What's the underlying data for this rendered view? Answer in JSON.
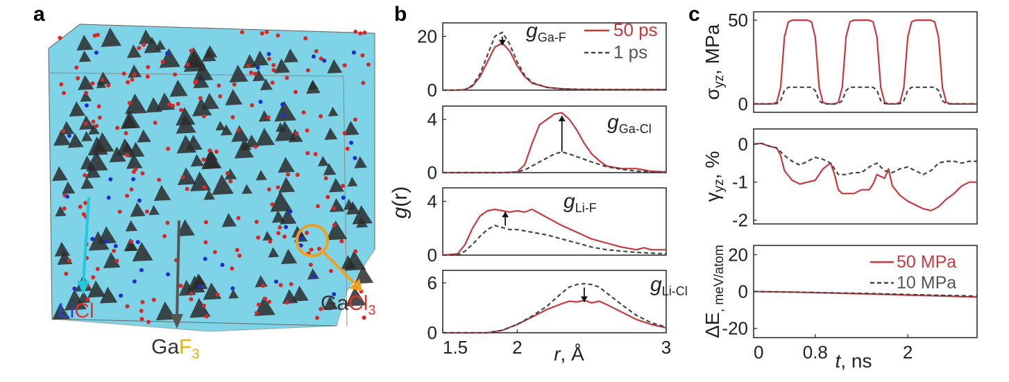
{
  "panels": {
    "a": {
      "label": "a",
      "labels": {
        "licl": {
          "parts": [
            {
              "text": "Li",
              "color": "#2a3fd6"
            },
            {
              "text": "Cl",
              "color": "#e0342b"
            }
          ]
        },
        "gaf3": {
          "parts": [
            {
              "text": "Ga",
              "color": "#333333"
            },
            {
              "text": "F",
              "color": "#e4b400"
            },
            {
              "text": "3",
              "color": "#e4b400",
              "sub": true
            }
          ]
        },
        "gacl3": {
          "parts": [
            {
              "text": "Ga",
              "color": "#333333"
            },
            {
              "text": "Cl",
              "color": "#e0342b"
            },
            {
              "text": "3",
              "color": "#e0342b",
              "sub": true
            }
          ]
        }
      },
      "colors": {
        "licl_arrow": "#1fc8e0",
        "gaf3_arrow": "#555555",
        "gacl3_arrow": "#f0a020",
        "cluster": "#7fd3e6",
        "tetra": "#2c2c2c",
        "atom_red": "#d62828",
        "atom_blue": "#1b2fd1"
      }
    },
    "b": {
      "label": "b"
    },
    "c": {
      "label": "c"
    }
  },
  "chart_data": [
    {
      "id": "b1",
      "type": "line",
      "panel": "b",
      "label_main": "g",
      "label_sub": "Ga-F",
      "ylim": [
        0,
        25
      ],
      "yticks": [
        0,
        20
      ],
      "xlim": [
        1.5,
        3.0
      ],
      "legend": [
        {
          "name": "50 ps",
          "style": "solid",
          "color": "#c8383c"
        },
        {
          "name": "1 ps",
          "style": "dashed",
          "color": "#444444"
        }
      ],
      "arrow": {
        "direction": "down",
        "x": 1.9
      },
      "series": [
        {
          "name": "50 ps",
          "color": "#c8383c",
          "style": "solid",
          "x": [
            1.5,
            1.6,
            1.65,
            1.7,
            1.75,
            1.8,
            1.85,
            1.9,
            1.95,
            2.0,
            2.05,
            2.1,
            2.2,
            2.3,
            2.4,
            2.6,
            2.8,
            3.0
          ],
          "y": [
            0,
            0,
            0.2,
            1.5,
            5,
            10.5,
            16,
            17.5,
            14.5,
            9,
            5,
            2.6,
            1,
            0.5,
            0.3,
            0.2,
            0.2,
            0.2
          ]
        },
        {
          "name": "1 ps",
          "color": "#444444",
          "style": "dashed",
          "x": [
            1.5,
            1.6,
            1.65,
            1.7,
            1.75,
            1.8,
            1.85,
            1.9,
            1.95,
            2.0,
            2.05,
            2.1,
            2.2,
            2.3,
            2.4,
            2.6,
            2.8,
            3.0
          ],
          "y": [
            0,
            0,
            0.2,
            1.8,
            6,
            13,
            20,
            21.5,
            17,
            10.5,
            5.5,
            2.8,
            1,
            0.5,
            0.3,
            0.2,
            0.2,
            0.2
          ]
        }
      ]
    },
    {
      "id": "b2",
      "type": "line",
      "panel": "b",
      "label_main": "g",
      "label_sub": "Ga-Cl",
      "ylim": [
        0,
        5
      ],
      "yticks": [
        0,
        4
      ],
      "xlim": [
        1.5,
        3.0
      ],
      "arrow": {
        "direction": "up",
        "x": 2.3
      },
      "series": [
        {
          "name": "50 ps",
          "color": "#c8383c",
          "style": "solid",
          "x": [
            1.5,
            1.9,
            2.0,
            2.05,
            2.1,
            2.15,
            2.2,
            2.25,
            2.3,
            2.35,
            2.4,
            2.45,
            2.5,
            2.55,
            2.6,
            2.7,
            2.8,
            2.9,
            3.0
          ],
          "y": [
            0,
            0,
            0.05,
            0.6,
            2.2,
            3.6,
            4.0,
            4.4,
            4.5,
            4.0,
            3.2,
            2.2,
            1.4,
            0.9,
            0.5,
            0.3,
            0.3,
            0.1,
            0.05
          ]
        },
        {
          "name": "1 ps",
          "color": "#444444",
          "style": "dashed",
          "x": [
            1.5,
            1.95,
            2.0,
            2.05,
            2.1,
            2.15,
            2.2,
            2.25,
            2.3,
            2.35,
            2.4,
            2.5,
            2.6,
            2.7,
            2.8,
            2.9,
            3.0
          ],
          "y": [
            0,
            0,
            0.05,
            0.2,
            0.5,
            0.8,
            1.1,
            1.4,
            1.55,
            1.4,
            1.2,
            0.8,
            0.45,
            0.25,
            0.12,
            0.06,
            0.05
          ]
        }
      ]
    },
    {
      "id": "b3",
      "type": "line",
      "panel": "b",
      "label_main": "g",
      "label_sub": "Li-F",
      "ylim": [
        0,
        5
      ],
      "yticks": [
        0,
        4
      ],
      "xlim": [
        1.5,
        3.0
      ],
      "arrow": {
        "direction": "up",
        "x": 1.92
      },
      "series": [
        {
          "name": "50 ps",
          "color": "#c8383c",
          "style": "solid",
          "x": [
            1.5,
            1.6,
            1.65,
            1.7,
            1.75,
            1.8,
            1.85,
            1.9,
            1.95,
            2.0,
            2.05,
            2.1,
            2.15,
            2.2,
            2.3,
            2.4,
            2.5,
            2.6,
            2.7,
            2.8,
            2.85,
            2.9,
            3.0
          ],
          "y": [
            0,
            0.1,
            0.8,
            2.0,
            2.9,
            3.3,
            3.4,
            3.3,
            3.2,
            3.3,
            3.2,
            3.4,
            3.1,
            2.8,
            2.2,
            1.7,
            1.2,
            0.9,
            0.6,
            0.4,
            0.55,
            0.4,
            0.4
          ]
        },
        {
          "name": "1 ps",
          "color": "#444444",
          "style": "dashed",
          "x": [
            1.5,
            1.6,
            1.65,
            1.7,
            1.75,
            1.8,
            1.85,
            1.9,
            1.95,
            2.0,
            2.1,
            2.2,
            2.3,
            2.4,
            2.5,
            2.6,
            2.7,
            2.8,
            2.9,
            3.0
          ],
          "y": [
            0,
            0,
            0.3,
            0.8,
            1.4,
            1.9,
            2.2,
            2.05,
            1.9,
            1.9,
            1.7,
            1.5,
            1.2,
            0.9,
            0.6,
            0.4,
            0.3,
            0.2,
            0.15,
            0.1
          ]
        }
      ]
    },
    {
      "id": "b4",
      "type": "line",
      "panel": "b",
      "label_main": "g",
      "label_sub": "Li-Cl",
      "ylim": [
        0,
        7.5
      ],
      "yticks": [
        0,
        6
      ],
      "xlim": [
        1.5,
        3.0
      ],
      "xticks": [
        1.5,
        2,
        3
      ],
      "xlabel_main": "r",
      "xlabel_rest": ", Å",
      "ylabel_main": "g",
      "ylabel_rest": "(r)",
      "arrow": {
        "direction": "down",
        "x": 2.45
      },
      "series": [
        {
          "name": "50 ps",
          "color": "#c8383c",
          "style": "solid",
          "x": [
            1.5,
            1.8,
            1.9,
            2.0,
            2.1,
            2.2,
            2.3,
            2.35,
            2.4,
            2.45,
            2.5,
            2.55,
            2.6,
            2.7,
            2.8,
            2.9,
            3.0
          ],
          "y": [
            0,
            0,
            0.3,
            1.0,
            1.9,
            2.8,
            3.5,
            3.8,
            3.7,
            3.9,
            3.6,
            3.8,
            3.4,
            2.5,
            1.6,
            1.0,
            0.6
          ]
        },
        {
          "name": "1 ps",
          "color": "#444444",
          "style": "dashed",
          "x": [
            1.5,
            1.8,
            1.9,
            2.0,
            2.1,
            2.2,
            2.3,
            2.35,
            2.4,
            2.45,
            2.5,
            2.55,
            2.6,
            2.7,
            2.8,
            2.9,
            3.0
          ],
          "y": [
            0,
            0,
            0.3,
            1.0,
            2.0,
            3.2,
            4.8,
            5.5,
            5.8,
            5.9,
            5.8,
            5.5,
            4.8,
            3.4,
            2.1,
            1.2,
            0.7
          ]
        }
      ]
    },
    {
      "id": "c1",
      "type": "line",
      "panel": "c",
      "ylabel_main": "σ",
      "ylabel_sub": "yz",
      "ylabel_rest": ", MPa",
      "ylim": [
        -5,
        55
      ],
      "yticks": [
        0,
        50
      ],
      "xlim": [
        0,
        2.9
      ],
      "series": [
        {
          "name": "50 MPa",
          "color": "#c8383c",
          "style": "solid",
          "x": [
            0,
            0.25,
            0.3,
            0.35,
            0.4,
            0.45,
            0.5,
            0.7,
            0.75,
            0.8,
            0.85,
            0.9,
            0.95,
            1.0,
            1.05,
            1.1,
            1.15,
            1.2,
            1.25,
            1.3,
            1.5,
            1.55,
            1.6,
            1.65,
            1.7,
            1.75,
            1.8,
            1.85,
            1.9,
            1.95,
            2.0,
            2.05,
            2.1,
            2.3,
            2.35,
            2.4,
            2.45,
            2.5,
            2.55,
            2.9
          ],
          "y": [
            0,
            0,
            1,
            10,
            40,
            49,
            50,
            50,
            49,
            40,
            10,
            1,
            0,
            0,
            0,
            1,
            10,
            40,
            49,
            50,
            50,
            49,
            40,
            10,
            1,
            0,
            0,
            0,
            1,
            10,
            40,
            49,
            50,
            50,
            49,
            40,
            10,
            1,
            0,
            0
          ]
        },
        {
          "name": "10 MPa",
          "color": "#444444",
          "style": "dashed",
          "x": [
            0,
            0.25,
            0.3,
            0.35,
            0.4,
            0.45,
            0.5,
            0.7,
            0.75,
            0.8,
            0.85,
            0.9,
            0.95,
            1.0,
            1.05,
            1.1,
            1.15,
            1.2,
            1.25,
            1.3,
            1.5,
            1.55,
            1.6,
            1.65,
            1.7,
            1.75,
            1.8,
            1.85,
            1.9,
            1.95,
            2.0,
            2.05,
            2.1,
            2.3,
            2.35,
            2.4,
            2.45,
            2.5,
            2.55,
            2.9
          ],
          "y": [
            0,
            0,
            0.2,
            2,
            8,
            10,
            10,
            10,
            10,
            8,
            2,
            0.2,
            0,
            0,
            0,
            0.2,
            2,
            8,
            10,
            10,
            10,
            10,
            8,
            2,
            0.2,
            0,
            0,
            0,
            0.2,
            2,
            8,
            10,
            10,
            10,
            10,
            8,
            2,
            0.2,
            0,
            0
          ]
        }
      ]
    },
    {
      "id": "c2",
      "type": "line",
      "panel": "c",
      "ylabel_main": "γ",
      "ylabel_sub": "yz",
      "ylabel_rest": ", %",
      "ylim": [
        -2.1,
        0.4
      ],
      "yticks": [
        -2,
        -1,
        0
      ],
      "xlim": [
        0,
        2.9
      ],
      "series": [
        {
          "name": "50 MPa",
          "color": "#c8383c",
          "style": "solid",
          "x": [
            0,
            0.1,
            0.2,
            0.3,
            0.35,
            0.4,
            0.5,
            0.6,
            0.7,
            0.8,
            0.9,
            1.0,
            1.05,
            1.1,
            1.15,
            1.2,
            1.3,
            1.4,
            1.5,
            1.55,
            1.6,
            1.7,
            1.75,
            1.8,
            1.9,
            2.0,
            2.1,
            2.2,
            2.3,
            2.4,
            2.5,
            2.6,
            2.7,
            2.8,
            2.9
          ],
          "y": [
            0,
            0.02,
            -0.05,
            -0.1,
            -0.3,
            -0.7,
            -0.95,
            -1.05,
            -1.0,
            -0.95,
            -0.65,
            -0.5,
            -0.8,
            -1.2,
            -1.3,
            -1.3,
            -1.3,
            -1.2,
            -1.2,
            -1.05,
            -0.8,
            -0.9,
            -0.65,
            -1.1,
            -1.35,
            -1.5,
            -1.6,
            -1.7,
            -1.75,
            -1.65,
            -1.45,
            -1.3,
            -1.1,
            -1.0,
            -1.0
          ]
        },
        {
          "name": "10 MPa",
          "color": "#444444",
          "style": "dashed",
          "x": [
            0,
            0.1,
            0.2,
            0.3,
            0.4,
            0.5,
            0.6,
            0.7,
            0.8,
            0.9,
            1.0,
            1.1,
            1.2,
            1.3,
            1.4,
            1.5,
            1.6,
            1.7,
            1.8,
            1.9,
            2.0,
            2.1,
            2.2,
            2.3,
            2.4,
            2.5,
            2.6,
            2.7,
            2.8,
            2.9
          ],
          "y": [
            0,
            0.02,
            -0.05,
            -0.1,
            -0.3,
            -0.45,
            -0.55,
            -0.45,
            -0.35,
            -0.4,
            -0.5,
            -0.8,
            -0.8,
            -0.75,
            -0.75,
            -0.6,
            -0.5,
            -0.7,
            -0.75,
            -0.65,
            -0.6,
            -0.7,
            -0.8,
            -0.7,
            -0.5,
            -0.45,
            -0.45,
            -0.5,
            -0.45,
            -0.45
          ]
        }
      ]
    },
    {
      "id": "c3",
      "type": "line",
      "panel": "c",
      "ylabel_main": "ΔE",
      "ylabel_sub": ", meV/atom",
      "ylim": [
        -25,
        25
      ],
      "yticks": [
        -20,
        0,
        20
      ],
      "xlim": [
        0,
        2.9
      ],
      "xticks": [
        0,
        0.8,
        2
      ],
      "xlabel_main": "t",
      "xlabel_rest": ", ns",
      "legend": [
        {
          "name": "50 MPa",
          "style": "solid",
          "color": "#c8383c"
        },
        {
          "name": "10 MPa",
          "style": "dashed",
          "color": "#444444"
        }
      ],
      "series": [
        {
          "name": "50 MPa",
          "color": "#c8383c",
          "style": "solid",
          "x": [
            0,
            0.5,
            1.0,
            1.5,
            2.0,
            2.5,
            2.9
          ],
          "y": [
            0,
            -0.3,
            -0.8,
            -1.3,
            -1.9,
            -2.5,
            -3.0
          ]
        },
        {
          "name": "10 MPa",
          "color": "#444444",
          "style": "dashed",
          "x": [
            0,
            0.5,
            1.0,
            1.5,
            2.0,
            2.5,
            2.9
          ],
          "y": [
            0,
            -0.3,
            -0.7,
            -1.1,
            -1.6,
            -2.1,
            -2.5
          ]
        }
      ]
    }
  ]
}
